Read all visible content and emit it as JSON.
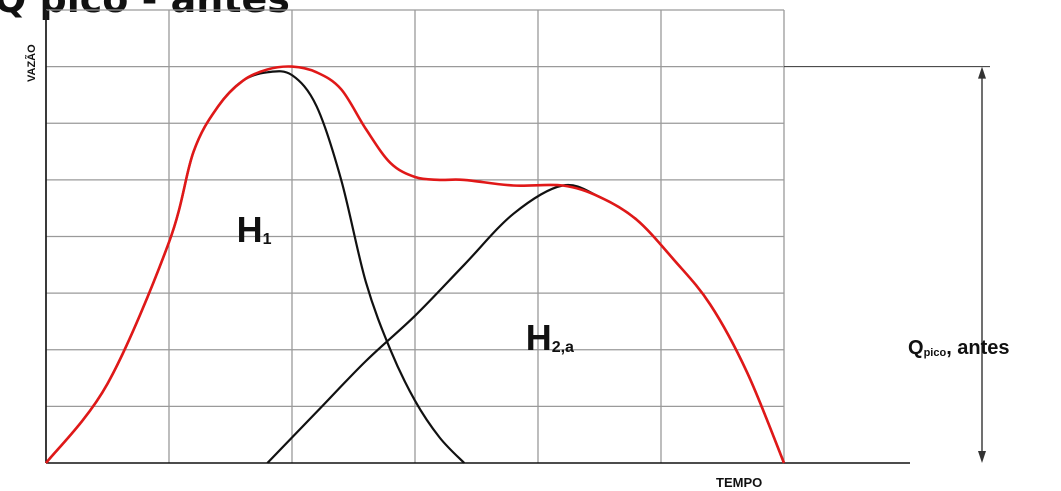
{
  "chart_data": {
    "type": "line",
    "title": "Q pico - antes",
    "xlabel": "TEMPO",
    "ylabel": "VAZÃO",
    "xlim": [
      0,
      6
    ],
    "ylim": [
      0,
      8
    ],
    "grid": true,
    "colors": {
      "grid": "#9a9a9a",
      "sum": "#e01818",
      "component": "#111111",
      "axis": "#111111",
      "annotation": "#333333"
    },
    "series": [
      {
        "name": "H1",
        "subscript": "1",
        "label_at": [
          1.55,
          3.9
        ],
        "color": "#111111",
        "x": [
          0,
          0.5,
          1.0,
          1.2,
          1.4,
          1.6,
          1.8,
          2.0,
          2.2,
          2.4,
          2.6,
          2.8,
          3.0,
          3.2,
          3.4
        ],
        "y": [
          0,
          1.4,
          3.9,
          5.5,
          6.3,
          6.75,
          6.9,
          6.85,
          6.3,
          5.0,
          3.2,
          2.0,
          1.1,
          0.45,
          0
        ]
      },
      {
        "name": "H2,a",
        "subscript": "2,a",
        "label_at": [
          3.9,
          2.0
        ],
        "color": "#111111",
        "x": [
          1.8,
          2.2,
          2.6,
          3.0,
          3.4,
          3.8,
          4.2,
          4.5,
          4.8,
          5.1,
          5.4,
          5.7,
          6.0
        ],
        "y": [
          0,
          0.9,
          1.8,
          2.6,
          3.5,
          4.4,
          4.9,
          4.7,
          4.3,
          3.6,
          2.8,
          1.6,
          0
        ]
      },
      {
        "name": "",
        "color": "#e01818",
        "x": [
          0,
          0.5,
          1.0,
          1.2,
          1.4,
          1.6,
          1.8,
          2.0,
          2.2,
          2.4,
          2.6,
          2.8,
          3.0,
          3.2,
          3.4,
          3.8,
          4.2,
          4.5,
          4.8,
          5.1,
          5.4,
          5.7,
          6.0
        ],
        "y": [
          0,
          1.4,
          3.9,
          5.5,
          6.3,
          6.75,
          6.95,
          7.0,
          6.9,
          6.6,
          5.9,
          5.3,
          5.05,
          5.0,
          5.0,
          4.9,
          4.9,
          4.7,
          4.3,
          3.6,
          2.8,
          1.6,
          0
        ]
      }
    ],
    "annotation": {
      "label_main": "Q",
      "label_sub": "pico",
      "label_rest": ", antes",
      "from_y": 0,
      "to_y": 7.0
    }
  }
}
